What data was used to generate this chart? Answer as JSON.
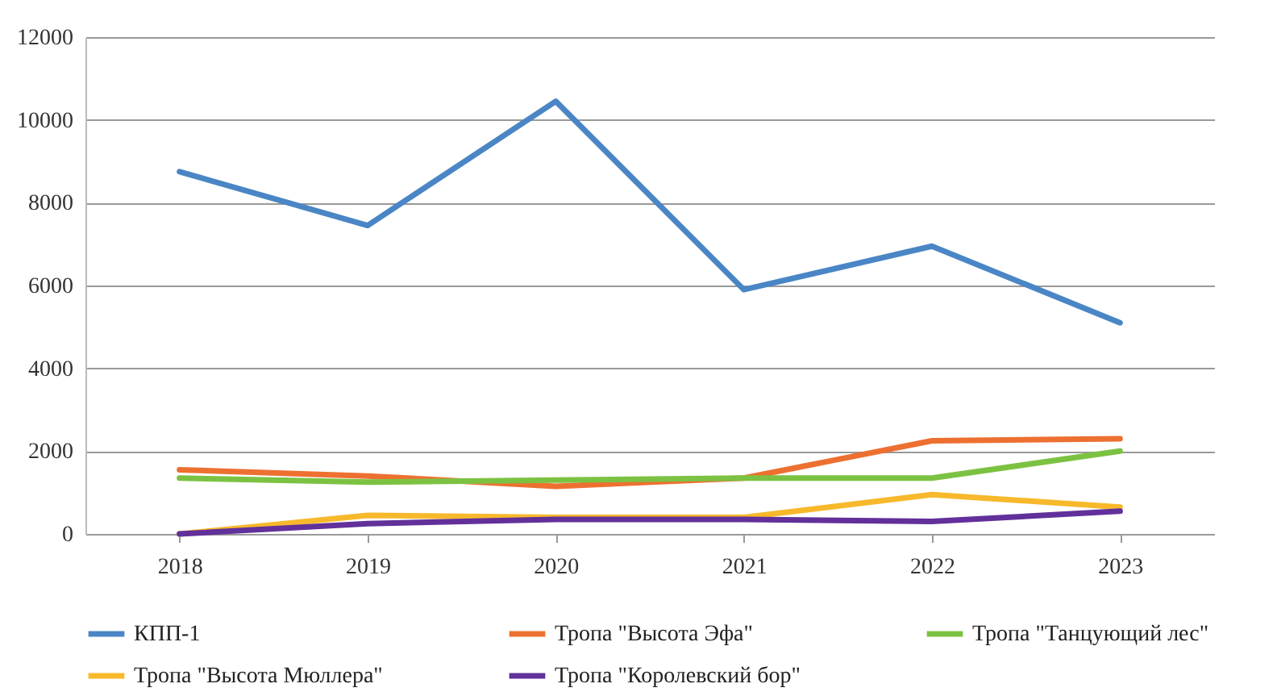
{
  "chart_data": {
    "type": "line",
    "categories": [
      "2018",
      "2019",
      "2020",
      "2021",
      "2022",
      "2023"
    ],
    "series": [
      {
        "name": "КПП-1",
        "color": "#4a86c5",
        "values": [
          8750,
          7450,
          10450,
          5900,
          6950,
          5100
        ]
      },
      {
        "name": "Тропа \"Высота Эфа\"",
        "color": "#ed7031",
        "values": [
          1550,
          1400,
          1150,
          1350,
          2250,
          2300
        ]
      },
      {
        "name": "Тропа \"Танцующий лес\"",
        "color": "#7cc242",
        "values": [
          1350,
          1250,
          1300,
          1350,
          1350,
          2000
        ]
      },
      {
        "name": "Тропа \"Высота Мюллера\"",
        "color": "#f7b92b",
        "values": [
          0,
          450,
          400,
          400,
          950,
          650
        ]
      },
      {
        "name": "Тропа \"Королевский бор\"",
        "color": "#62309a",
        "values": [
          0,
          250,
          350,
          350,
          300,
          550
        ]
      }
    ],
    "ylim": [
      0,
      12000
    ],
    "yticks": [
      0,
      2000,
      4000,
      6000,
      8000,
      10000,
      12000
    ],
    "grid": "y",
    "legend": "bottom",
    "marker": "none",
    "line_style": "solid"
  }
}
